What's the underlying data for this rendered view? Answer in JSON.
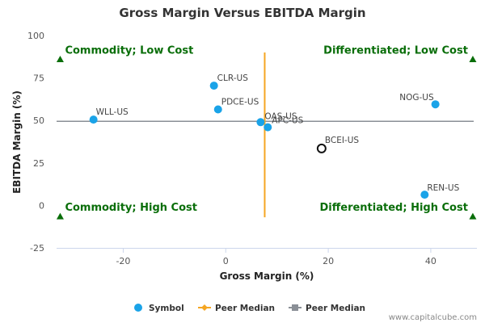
{
  "chart_data": {
    "type": "scatter",
    "title": "Gross Margin Versus EBITDA Margin",
    "xlabel": "Gross Margin (%)",
    "ylabel": "EBITDA Margin (%)",
    "xlim": [
      -33,
      49
    ],
    "ylim": [
      -25,
      100
    ],
    "x_ticks": [
      -20,
      0,
      20,
      40
    ],
    "y_ticks": [
      -25,
      0,
      25,
      50,
      75,
      100
    ],
    "grid": false,
    "points": [
      {
        "label": "CLR-US",
        "x": -2.3,
        "y": 70.5
      },
      {
        "label": "PDCE-US",
        "x": -1.5,
        "y": 56.5
      },
      {
        "label": "WLL-US",
        "x": -25.8,
        "y": 50.5
      },
      {
        "label": "OAS-US",
        "x": 6.8,
        "y": 49.0
      },
      {
        "label": "APC-US",
        "x": 8.2,
        "y": 46.0
      },
      {
        "label": "NOG-US",
        "x": 40.9,
        "y": 59.5
      },
      {
        "label": "REN-US",
        "x": 38.8,
        "y": 6.3
      }
    ],
    "highlight": {
      "label": "BCEI-US",
      "x": 18.7,
      "y": 33.5
    },
    "peer_median_x": 7.6,
    "peer_median_y": 49.5,
    "quadrants": [
      {
        "label": "Commodity; Low Cost",
        "pos": "top-left"
      },
      {
        "label": "Differentiated; Low Cost",
        "pos": "top-right"
      },
      {
        "label": "Commodity; High Cost",
        "pos": "bottom-left"
      },
      {
        "label": "Differentiated; High Cost",
        "pos": "bottom-right"
      }
    ],
    "legend": {
      "placement": "bottom-center",
      "items": [
        {
          "label": "Symbol",
          "kind": "dot",
          "color": "#1aa3e8"
        },
        {
          "label": "Peer Median",
          "kind": "line-diamond",
          "color": "#f5a623"
        },
        {
          "label": "Peer Median",
          "kind": "line-square",
          "color": "#8a8f96"
        }
      ]
    },
    "colors": {
      "point": "#1aa3e8",
      "median_x": "#f5a623",
      "median_y": "#8a8f96",
      "quadrant_text": "#0a6e0a",
      "marker": "#0a6e0a",
      "axis": "#ccd6eb"
    }
  },
  "credit": "www.capitalcube.com"
}
